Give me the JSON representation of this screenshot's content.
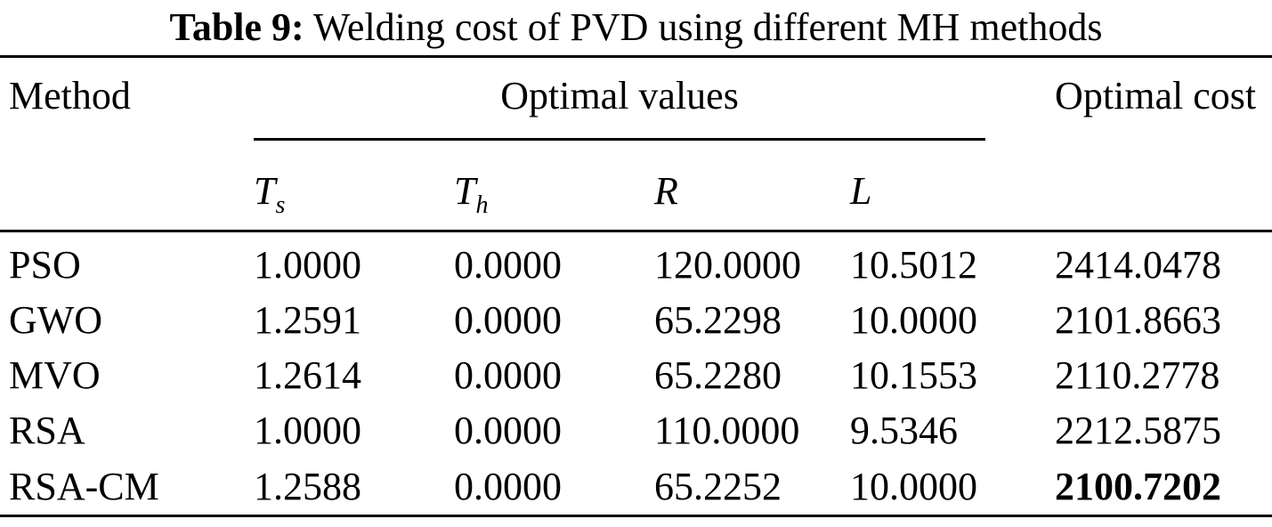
{
  "page": {
    "caption": {
      "label": "Table 9:",
      "text": "Welding cost of PVD using different MH methods"
    },
    "header": {
      "method": "Method",
      "optimal_values": "Optimal values",
      "optimal_cost": "Optimal cost",
      "subcols": [
        {
          "base": "T",
          "sub": "s"
        },
        {
          "base": "T",
          "sub": "h"
        },
        {
          "base": "R",
          "sub": ""
        },
        {
          "base": "L",
          "sub": ""
        }
      ]
    },
    "rows": [
      {
        "method": "PSO",
        "ts": "1.0000",
        "th": "0.0000",
        "r": "120.0000",
        "l": "10.5012",
        "cost": "2414.0478"
      },
      {
        "method": "GWO",
        "ts": "1.2591",
        "th": "0.0000",
        "r": "65.2298",
        "l": "10.0000",
        "cost": "2101.8663"
      },
      {
        "method": "MVO",
        "ts": "1.2614",
        "th": "0.0000",
        "r": "65.2280",
        "l": "10.1553",
        "cost": "2110.2778"
      },
      {
        "method": "RSA",
        "ts": "1.0000",
        "th": "0.0000",
        "r": "110.0000",
        "l": "9.5346",
        "cost": "2212.5875"
      },
      {
        "method": "RSA-CM",
        "ts": "1.2588",
        "th": "0.0000",
        "r": "65.2252",
        "l": "10.0000",
        "cost": "2100.7202"
      }
    ]
  }
}
